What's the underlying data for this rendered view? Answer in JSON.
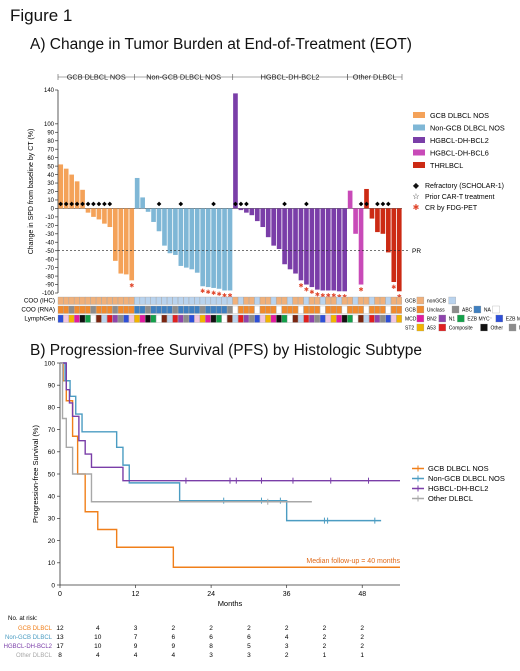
{
  "figure_label": "Figure 1",
  "panel_a": {
    "title": "A) Change in Tumor Burden at End-of-Treatment (EOT)",
    "group_headers": [
      "GCB DLBCL NOS",
      "Non-GCB DLBCL NOS",
      "HGBCL-DH-BCL2",
      "Other DLBCL"
    ],
    "pr_label": "PR",
    "legend": [
      {
        "name": "GCB DLBCL NOS",
        "color": "#F4A259"
      },
      {
        "name": "Non-GCB DLBCL NOS",
        "color": "#7FB7D6"
      },
      {
        "name": "HGBCL-DH-BCL2",
        "color": "#7A3EA8"
      },
      {
        "name": "HGBCL-DH-BCL6",
        "color": "#C84AB8"
      },
      {
        "name": "THRLBCL",
        "color": "#CC2A14"
      }
    ],
    "marker_legend": [
      {
        "symbol": "◆",
        "label": "Refractory (SCHOLAR-1)"
      },
      {
        "symbol": "☆",
        "label": "Prior CAR-T treatment"
      },
      {
        "symbol": "✱",
        "label": "CR by FDG-PET"
      }
    ],
    "track_labels": [
      "COO (IHC)",
      "COO (RNA)",
      "LymphGen"
    ],
    "track_legend": {
      "ihc": [
        {
          "label": "GCB",
          "color": "#F0B07A"
        },
        {
          "label": "nonGCB",
          "color": "#B9D3EE"
        }
      ],
      "rna": [
        {
          "label": "GCB",
          "color": "#F08A2E"
        },
        {
          "label": "Unclass",
          "color": "#8C8C8C"
        },
        {
          "label": "ABC",
          "color": "#3F7FBF"
        },
        {
          "label": "NA",
          "color": "#FFFFFF"
        }
      ],
      "lymphgen1": [
        {
          "label": "MCD",
          "color": "#E11BA0"
        },
        {
          "label": "BN2",
          "color": "#8E44AD"
        },
        {
          "label": "N1",
          "color": "#14A04A"
        },
        {
          "label": "EZB MYC⁻",
          "color": "#2E4FD8"
        },
        {
          "label": "EZB MYC⁺",
          "color": "#7A2510"
        }
      ],
      "lymphgen2": [
        {
          "label": "ST2",
          "color": "#F2B400"
        },
        {
          "label": "A53",
          "color": "#E02020"
        },
        {
          "label": "Composite",
          "color": "#111111"
        },
        {
          "label": "Other",
          "color": "#8C8C8C"
        },
        {
          "label": "NA",
          "color": "#FFFFFF"
        }
      ]
    }
  },
  "panel_b": {
    "title": "B) Progression-free Survival (PFS) by Histologic Subtype",
    "median_followup": "Median follow-up = 40 months",
    "at_risk_label": "No. at risk:"
  },
  "chart_data": [
    {
      "type": "bar",
      "title": "A) Change in Tumor Burden at End-of-Treatment (EOT)",
      "ylabel": "Change in SPD from baseline by CT (%)",
      "ylim": [
        -100,
        140
      ],
      "yticks": [
        140,
        100,
        90,
        80,
        70,
        60,
        50,
        40,
        30,
        20,
        10,
        0,
        -10,
        -20,
        -30,
        -40,
        -50,
        -60,
        -70,
        -80,
        -90,
        -100
      ],
      "reference_line": {
        "y": -50,
        "label": "PR"
      },
      "series": [
        {
          "name": "GCB DLBCL NOS",
          "color": "#F4A259",
          "values": [
            52,
            47,
            40,
            32,
            22,
            -5,
            -10,
            -13,
            -18,
            -22,
            -62,
            -77,
            -78,
            -85
          ],
          "markers": [
            "◆",
            "◆",
            "◆",
            "◆",
            "◆",
            "◆",
            "◆",
            "◆",
            "◆",
            "◆",
            "",
            "",
            "",
            ""
          ]
        },
        {
          "name": "Non-GCB DLBCL NOS",
          "color": "#7FB7D6",
          "values": [
            36,
            13,
            -4,
            -16,
            -27,
            -44,
            -53,
            -55,
            -68,
            -70,
            -72,
            -76,
            -92,
            -93,
            -94,
            -95,
            -97,
            -97
          ],
          "markers": [
            "",
            "",
            "",
            "",
            "◆",
            "",
            "",
            "",
            "◆",
            "",
            "",
            "",
            "",
            "",
            "◆",
            "",
            "",
            ""
          ]
        },
        {
          "name": "HGBCL-DH-BCL2",
          "color": "#7A3EA8",
          "values": [
            136,
            -2,
            -5,
            -8,
            -15,
            -22,
            -34,
            -44,
            -48,
            -66,
            -72,
            -77,
            -85,
            -90,
            -93,
            -96,
            -97,
            -97,
            -97,
            -98,
            -98
          ],
          "markers": [
            "◆",
            "◆",
            "◆",
            "",
            "",
            "",
            "",
            "",
            "",
            "◆",
            "",
            "",
            "",
            "◆",
            "",
            "",
            "",
            "",
            "",
            "",
            ""
          ]
        },
        {
          "name": "HGBCL-DH-BCL6",
          "color": "#C84AB8",
          "values": [
            21,
            -30,
            -90
          ],
          "markers": [
            "",
            "",
            "◆"
          ]
        },
        {
          "name": "THRLBCL",
          "color": "#CC2A14",
          "values": [
            23,
            -12,
            -28,
            -30,
            -52,
            -87,
            -98
          ],
          "markers": [
            "◆",
            "",
            "◆",
            "◆",
            "◆",
            "",
            ""
          ]
        }
      ]
    },
    {
      "type": "line",
      "title": "B) Progression-free Survival (PFS) by Histologic Subtype",
      "xlabel": "Months",
      "ylabel": "Progression-free Survival (%)",
      "xlim": [
        0,
        54
      ],
      "ylim": [
        0,
        100
      ],
      "xticks": [
        0,
        12,
        24,
        36,
        48
      ],
      "yticks": [
        0,
        10,
        20,
        30,
        40,
        50,
        60,
        70,
        80,
        90,
        100
      ],
      "legend_position": "right",
      "series": [
        {
          "name": "GCB DLBCL NOS",
          "color": "#F07F1A",
          "steps": [
            [
              0,
              100
            ],
            [
              0.5,
              92
            ],
            [
              1,
              83
            ],
            [
              2,
              67
            ],
            [
              2.8,
              50
            ],
            [
              4,
              33
            ],
            [
              6,
              25
            ],
            [
              9,
              17
            ],
            [
              18,
              8
            ],
            [
              54,
              8
            ]
          ],
          "censors": []
        },
        {
          "name": "Non-GCB DLBCL NOS",
          "color": "#4B9CC2",
          "steps": [
            [
              0,
              100
            ],
            [
              0.8,
              92
            ],
            [
              1.6,
              85
            ],
            [
              2.5,
              77
            ],
            [
              3.5,
              69
            ],
            [
              9,
              62
            ],
            [
              10,
              54
            ],
            [
              11,
              46
            ],
            [
              19,
              38
            ],
            [
              36,
              29
            ],
            [
              51,
              29
            ]
          ],
          "censors": [
            [
              26,
              38
            ],
            [
              32,
              38
            ],
            [
              35,
              38
            ],
            [
              42,
              29
            ],
            [
              42.5,
              29
            ],
            [
              50,
              29
            ]
          ]
        },
        {
          "name": "HGBCL-DH-BCL2",
          "color": "#7A3EA8",
          "steps": [
            [
              0,
              100
            ],
            [
              1,
              88
            ],
            [
              1.5,
              82
            ],
            [
              2,
              76
            ],
            [
              3,
              65
            ],
            [
              4,
              59
            ],
            [
              5,
              53
            ],
            [
              10,
              47
            ],
            [
              54,
              47
            ]
          ],
          "censors": [
            [
              20,
              47
            ],
            [
              27,
              47
            ],
            [
              28,
              47
            ],
            [
              32,
              47
            ],
            [
              37,
              47
            ],
            [
              43,
              47
            ],
            [
              49,
              47
            ]
          ]
        },
        {
          "name": "Other DLBCL",
          "color": "#A8A8A8",
          "steps": [
            [
              0,
              100
            ],
            [
              0.4,
              75
            ],
            [
              1,
              62
            ],
            [
              2,
              50
            ],
            [
              5,
              37.5
            ],
            [
              40,
              37.5
            ]
          ],
          "censors": [
            [
              33,
              37.5
            ]
          ]
        }
      ],
      "at_risk": {
        "times": [
          0,
          6,
          12,
          18,
          24,
          30,
          36,
          42,
          48
        ],
        "rows": [
          {
            "name": "GCB DLBCL",
            "color": "#F07F1A",
            "values": [
              12,
              4,
              3,
              2,
              2,
              2,
              2,
              2,
              2
            ]
          },
          {
            "name": "Non-GCB DLBCL",
            "color": "#4B9CC2",
            "values": [
              13,
              10,
              7,
              6,
              6,
              6,
              4,
              2,
              2
            ]
          },
          {
            "name": "HGBCL-DH-BCL2",
            "color": "#7A3EA8",
            "values": [
              17,
              10,
              9,
              9,
              8,
              5,
              3,
              2,
              2
            ]
          },
          {
            "name": "Other DLBCL",
            "color": "#A8A8A8",
            "values": [
              8,
              4,
              4,
              4,
              3,
              3,
              2,
              1,
              1
            ]
          }
        ]
      }
    }
  ]
}
